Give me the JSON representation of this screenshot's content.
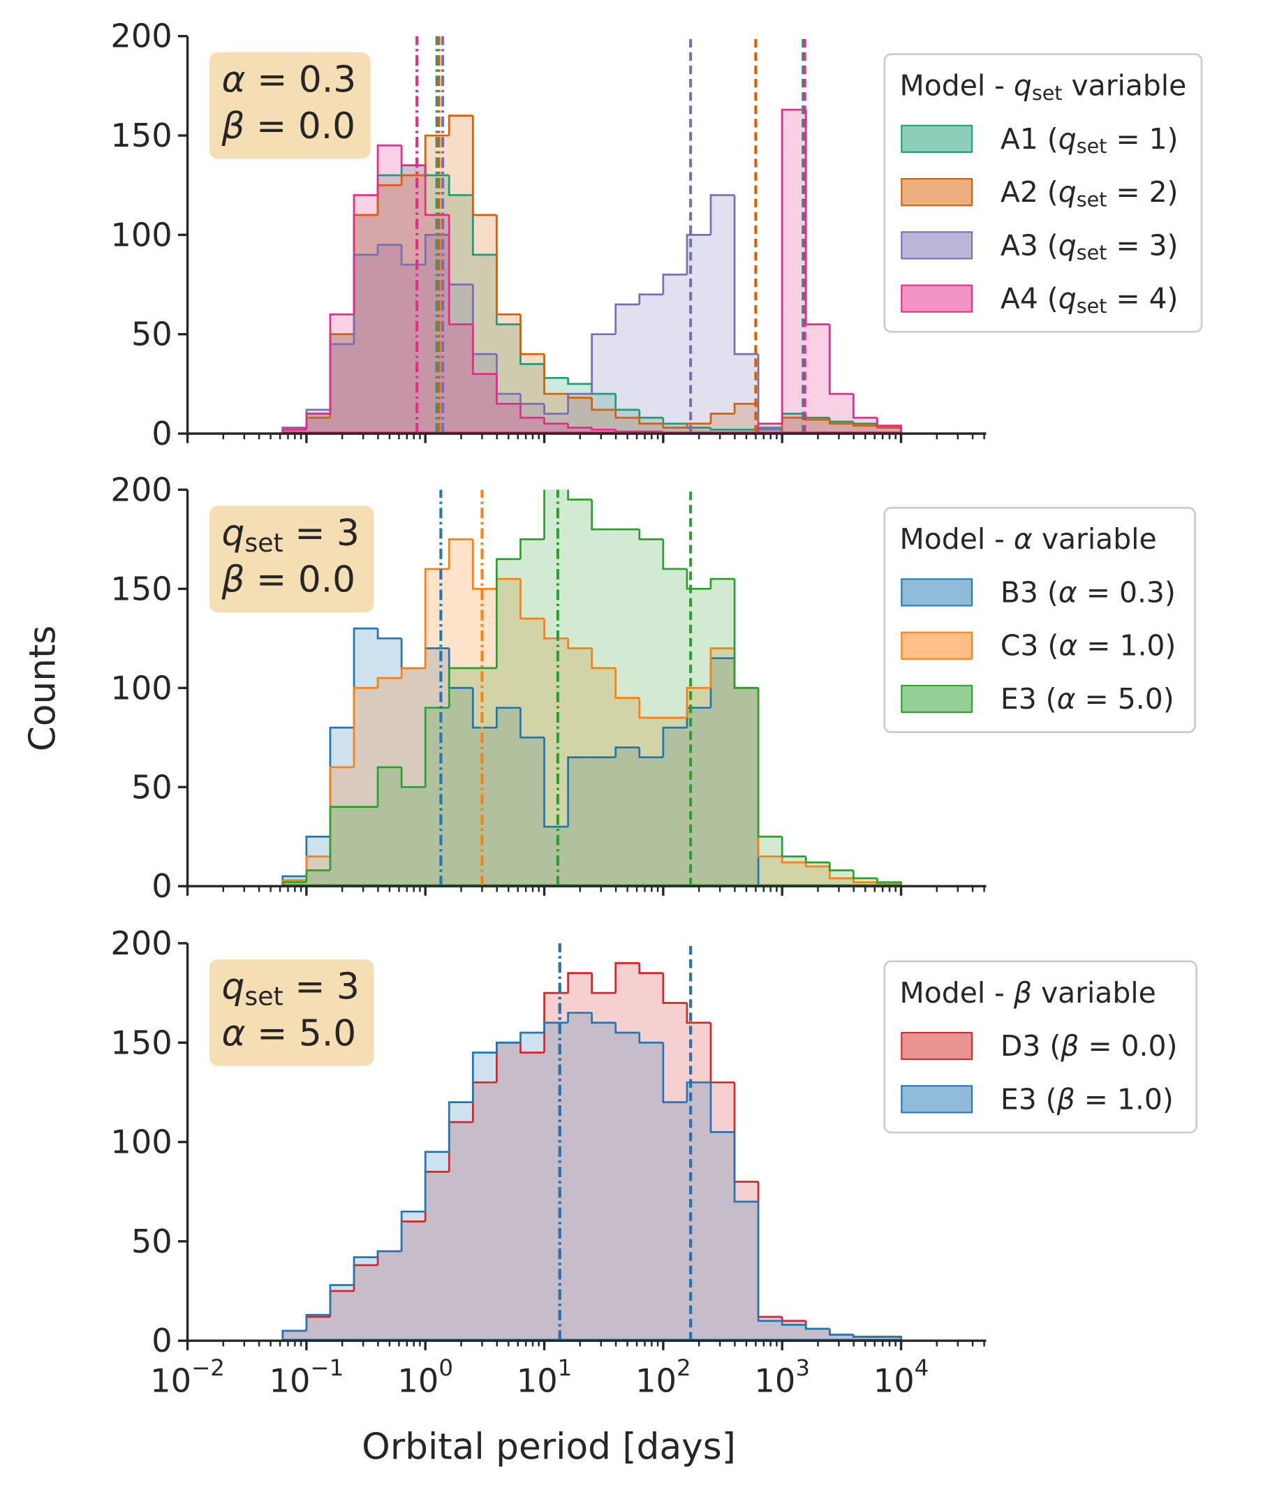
{
  "chart_data": [
    {
      "type": "histogram",
      "xscale": "log",
      "xlim": [
        0.01,
        52000
      ],
      "ylim": [
        0,
        200
      ],
      "yticks": [
        0,
        50,
        100,
        150,
        200
      ],
      "xticks": [
        0.01,
        0.1,
        1,
        10,
        100,
        1000,
        10000
      ],
      "minor_ticks": true,
      "annotation": [
        "α = 0.3",
        "β = 0.0"
      ],
      "legend_title": "Model - qset variable",
      "legend": "outside right",
      "bins": [
        0.0631,
        0.1,
        0.1585,
        0.2512,
        0.3981,
        0.631,
        1,
        1.585,
        2.512,
        3.981,
        6.31,
        10,
        15.85,
        25.12,
        39.81,
        63.1,
        100,
        158.5,
        251.2,
        398.1,
        631,
        1000,
        1585,
        2512,
        3981,
        6310,
        10000
      ],
      "series": [
        {
          "name": "A1 (qset = 1)",
          "color": "#1b9e77",
          "values": [
            3,
            10,
            50,
            110,
            130,
            135,
            130,
            120,
            90,
            55,
            35,
            28,
            25,
            20,
            12,
            8,
            5,
            3,
            2,
            2,
            3,
            10,
            8,
            6,
            5,
            3
          ],
          "vlines": [
            {
              "x": 1.25,
              "style": "dashdot"
            },
            {
              "x": 1500,
              "style": "dashed"
            }
          ]
        },
        {
          "name": "A2 (qset = 2)",
          "color": "#d95f02",
          "values": [
            2,
            8,
            50,
            110,
            125,
            130,
            150,
            160,
            110,
            60,
            40,
            20,
            18,
            12,
            8,
            5,
            3,
            5,
            10,
            15,
            0,
            8,
            7,
            5,
            4,
            3
          ],
          "vlines": [
            {
              "x": 1.3,
              "style": "dashdot"
            },
            {
              "x": 600,
              "style": "dashed"
            }
          ]
        },
        {
          "name": "A3 (qset = 3)",
          "color": "#7570b3",
          "values": [
            3,
            12,
            45,
            90,
            95,
            85,
            100,
            75,
            40,
            20,
            15,
            10,
            20,
            50,
            65,
            70,
            80,
            100,
            120,
            40,
            2,
            0,
            0,
            0,
            0,
            0
          ],
          "vlines": [
            {
              "x": 1.4,
              "style": "dashdot"
            },
            {
              "x": 170,
              "style": "dashed"
            }
          ]
        },
        {
          "name": "A4 (qset = 4)",
          "color": "#e7298a",
          "values": [
            2,
            10,
            60,
            120,
            145,
            135,
            110,
            55,
            30,
            15,
            8,
            5,
            3,
            2,
            1,
            1,
            0,
            0,
            0,
            0,
            5,
            163,
            55,
            20,
            8,
            4
          ],
          "vlines": [
            {
              "x": 0.85,
              "style": "dashdot"
            },
            {
              "x": 1550,
              "style": "dashed"
            }
          ]
        }
      ]
    },
    {
      "type": "histogram",
      "xscale": "log",
      "xlim": [
        0.01,
        52000
      ],
      "ylim": [
        0,
        200
      ],
      "yticks": [
        0,
        50,
        100,
        150,
        200
      ],
      "xticks": [
        0.01,
        0.1,
        1,
        10,
        100,
        1000,
        10000
      ],
      "minor_ticks": true,
      "ylabel": "Counts",
      "annotation": [
        "qset = 3",
        "β = 0.0"
      ],
      "legend_title": "Model - α variable",
      "legend": "outside right",
      "bins": [
        0.0631,
        0.1,
        0.1585,
        0.2512,
        0.3981,
        0.631,
        1,
        1.585,
        2.512,
        3.981,
        6.31,
        10,
        15.85,
        25.12,
        39.81,
        63.1,
        100,
        158.5,
        251.2,
        398.1,
        631,
        1000,
        1585,
        2512,
        3981,
        6310,
        10000
      ],
      "series": [
        {
          "name": "B3 (α = 0.3)",
          "color": "#1f77b4",
          "values": [
            5,
            25,
            80,
            130,
            125,
            110,
            120,
            100,
            80,
            90,
            75,
            30,
            65,
            65,
            70,
            65,
            80,
            90,
            115,
            100,
            0,
            0,
            0,
            0,
            0,
            0
          ],
          "vlines": [
            {
              "x": 1.35,
              "style": "dashdot"
            }
          ]
        },
        {
          "name": "C3 (α = 1.0)",
          "color": "#ff7f0e",
          "values": [
            3,
            15,
            60,
            100,
            105,
            110,
            160,
            175,
            150,
            155,
            135,
            125,
            120,
            110,
            95,
            85,
            85,
            100,
            120,
            100,
            15,
            12,
            10,
            4,
            2,
            1
          ],
          "vlines": [
            {
              "x": 3.0,
              "style": "dashdot"
            }
          ]
        },
        {
          "name": "E3 (α = 5.0)",
          "color": "#2ca02c",
          "values": [
            2,
            8,
            40,
            40,
            60,
            50,
            90,
            110,
            110,
            165,
            175,
            210,
            195,
            180,
            180,
            175,
            160,
            150,
            155,
            100,
            25,
            15,
            12,
            8,
            4,
            2
          ],
          "vlines": [
            {
              "x": 13,
              "style": "dashdot"
            },
            {
              "x": 170,
              "style": "dashed"
            }
          ]
        }
      ]
    },
    {
      "type": "histogram",
      "xscale": "log",
      "xlim": [
        0.01,
        52000
      ],
      "ylim": [
        0,
        200
      ],
      "yticks": [
        0,
        50,
        100,
        150,
        200
      ],
      "xticks": [
        {
          "value": 0.01,
          "label": "10−2"
        },
        {
          "value": 0.1,
          "label": "10−1"
        },
        {
          "value": 1,
          "label": "100"
        },
        {
          "value": 10,
          "label": "101"
        },
        {
          "value": 100,
          "label": "102"
        },
        {
          "value": 1000,
          "label": "103"
        },
        {
          "value": 10000,
          "label": "104"
        }
      ],
      "minor_ticks": true,
      "xlabel": "Orbital period [days]",
      "annotation": [
        "qset = 3",
        "α = 5.0"
      ],
      "legend_title": "Model - β variable",
      "legend": "outside right",
      "bins": [
        0.0631,
        0.1,
        0.1585,
        0.2512,
        0.3981,
        0.631,
        1,
        1.585,
        2.512,
        3.981,
        6.31,
        10,
        15.85,
        25.12,
        39.81,
        63.1,
        100,
        158.5,
        251.2,
        398.1,
        631,
        1000,
        1585,
        2512,
        3981,
        6310,
        10000
      ],
      "series": [
        {
          "name": "D3 (β = 0.0)",
          "color": "#d62728",
          "values": [
            5,
            12,
            25,
            38,
            45,
            60,
            85,
            110,
            130,
            150,
            145,
            175,
            185,
            175,
            190,
            185,
            170,
            160,
            130,
            80,
            12,
            10,
            6,
            3,
            2,
            2
          ],
          "vlines": [
            {
              "x": 13.5,
              "style": "dashdot"
            },
            {
              "x": 170,
              "style": "dashed"
            }
          ]
        },
        {
          "name": "E3 (β = 1.0)",
          "color": "#1f77b4",
          "values": [
            5,
            13,
            28,
            42,
            45,
            65,
            95,
            120,
            145,
            150,
            155,
            160,
            165,
            160,
            155,
            150,
            120,
            130,
            105,
            70,
            10,
            8,
            6,
            3,
            2,
            2
          ],
          "vlines": [
            {
              "x": 13.5,
              "style": "dashdot"
            },
            {
              "x": 170,
              "style": "dashed"
            }
          ]
        }
      ]
    }
  ]
}
